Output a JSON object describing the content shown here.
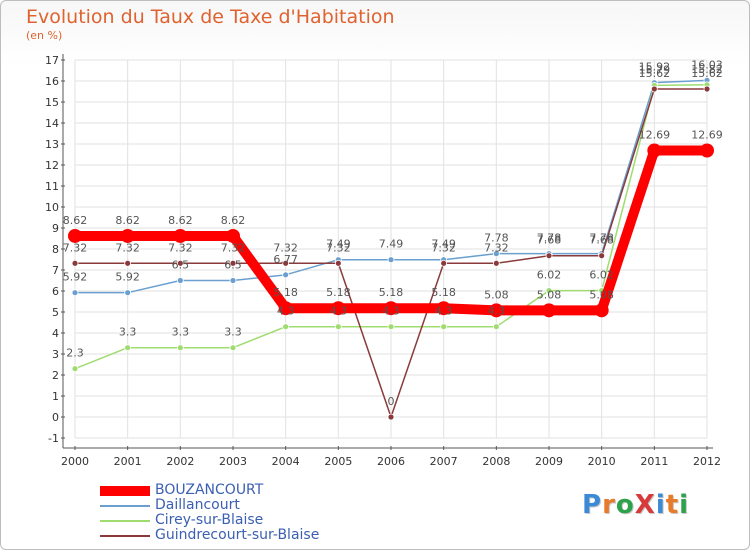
{
  "title": "Evolution du Taux de Taxe d'Habitation",
  "subtitle": "(en %)",
  "logo": {
    "text": "ProXiti",
    "colors": [
      "#3a8ad6",
      "#e87b2a",
      "#2da14b",
      "#d83a3a",
      "#3a8ad6",
      "#e87b2a",
      "#2da14b"
    ]
  },
  "chart_data": {
    "type": "line",
    "title": "Evolution du Taux de Taxe d'Habitation",
    "ylabel": "(en %)",
    "xlabel": "",
    "x": [
      "2000",
      "2001",
      "2002",
      "2003",
      "2004",
      "2005",
      "2006",
      "2007",
      "2008",
      "2009",
      "2010",
      "2011",
      "2012"
    ],
    "ylim": [
      -1,
      17
    ],
    "yticks": [
      "-1",
      "0",
      "1",
      "2",
      "3",
      "4",
      "5",
      "6",
      "7",
      "8",
      "9",
      "10",
      "11",
      "12",
      "13",
      "14",
      "15",
      "16",
      "17"
    ],
    "grid": true,
    "legend_position": "bottom-left",
    "series": [
      {
        "name": "BOUZANCOURT",
        "color": "#ff0000",
        "values": [
          8.62,
          8.62,
          8.62,
          8.62,
          5.18,
          5.18,
          5.18,
          5.18,
          5.08,
          5.08,
          5.08,
          12.69,
          12.69
        ],
        "labels": [
          "8.62",
          "8.62",
          "8.62",
          "8.62",
          "5.18",
          "5.18",
          "5.18",
          "5.18",
          "5.08",
          "5.08",
          "5.08",
          "12.69",
          "12.69"
        ]
      },
      {
        "name": "Daillancourt",
        "color": "#6a9fd0",
        "values": [
          5.92,
          5.92,
          6.5,
          6.5,
          6.77,
          7.49,
          7.49,
          7.49,
          7.78,
          7.78,
          7.78,
          15.92,
          16.03
        ],
        "labels": [
          "5.92",
          "5.92",
          "6.5",
          "6.5",
          "6.77",
          "7.49",
          "7.49",
          "7.49",
          "7.78",
          "7.78",
          "7.78",
          "15.92",
          "16.03"
        ]
      },
      {
        "name": "Cirey-sur-Blaise",
        "color": "#9fdc70",
        "values": [
          2.3,
          3.3,
          3.3,
          3.3,
          4.3,
          4.3,
          4.3,
          4.3,
          4.3,
          6.02,
          6.02,
          15.79,
          15.82
        ],
        "labels": [
          "2.3",
          "3.3",
          "3.3",
          "3.3",
          "4.3",
          "4.3",
          "4.3",
          "4.3",
          "4.3",
          "6.02",
          "6.02",
          "15.79",
          "15.82"
        ]
      },
      {
        "name": "Guindrecourt-sur-Blaise",
        "color": "#8a3a3a",
        "values": [
          7.32,
          7.32,
          7.32,
          7.32,
          7.32,
          7.32,
          0,
          7.32,
          7.32,
          7.68,
          7.68,
          15.62,
          15.62
        ],
        "labels": [
          "7.32",
          "7.32",
          "7.32",
          "7.32",
          "7.32",
          "7.32",
          "0",
          "7.32",
          "7.32",
          "7.68",
          "7.68",
          "15.62",
          "15.62"
        ]
      }
    ]
  }
}
